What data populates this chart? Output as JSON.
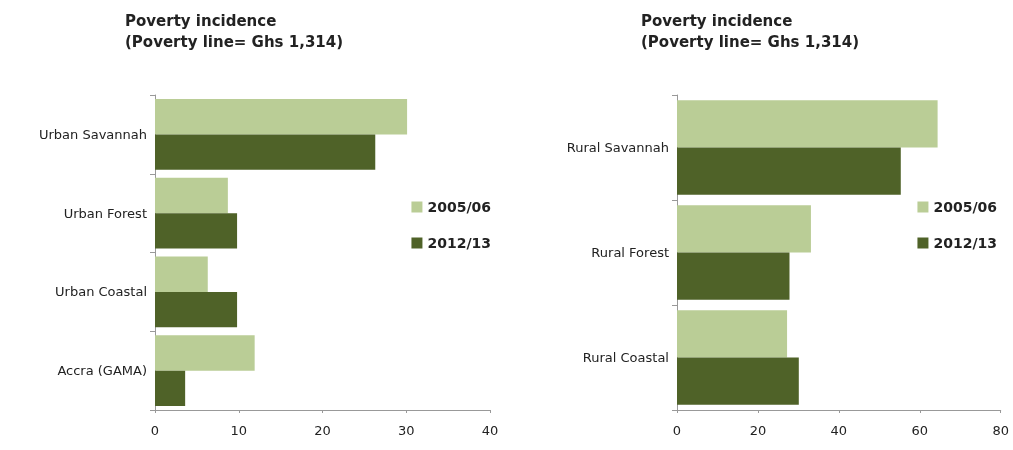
{
  "chart_data": [
    {
      "type": "bar",
      "orientation": "horizontal",
      "title": "Poverty incidence",
      "subtitle": "(Poverty line= Ghs 1,314)",
      "categories": [
        "Urban Savannah",
        "Urban Forest",
        "Urban Coastal",
        "Accra (GAMA)"
      ],
      "series": [
        {
          "name": "2005/06",
          "color": "#bacd96",
          "values": [
            30.1,
            8.7,
            6.3,
            11.9
          ]
        },
        {
          "name": "2012/13",
          "color": "#4f6228",
          "values": [
            26.3,
            9.8,
            9.8,
            3.6
          ]
        }
      ],
      "xlim": [
        0,
        40
      ],
      "xticks": [
        0,
        10,
        20,
        30,
        40
      ],
      "grid": false,
      "legend": "right"
    },
    {
      "type": "bar",
      "orientation": "horizontal",
      "title": "Poverty incidence",
      "subtitle": "(Poverty line= Ghs 1,314)",
      "categories": [
        "Rural Savannah",
        "Rural Forest",
        "Rural Coastal"
      ],
      "series": [
        {
          "name": "2005/06",
          "color": "#bacd96",
          "values": [
            64.4,
            33.1,
            27.2
          ]
        },
        {
          "name": "2012/13",
          "color": "#4f6228",
          "values": [
            55.3,
            27.8,
            30.1
          ]
        }
      ],
      "xlim": [
        0,
        80
      ],
      "xticks": [
        0,
        20,
        40,
        60,
        80
      ],
      "grid": false,
      "legend": "right"
    }
  ]
}
